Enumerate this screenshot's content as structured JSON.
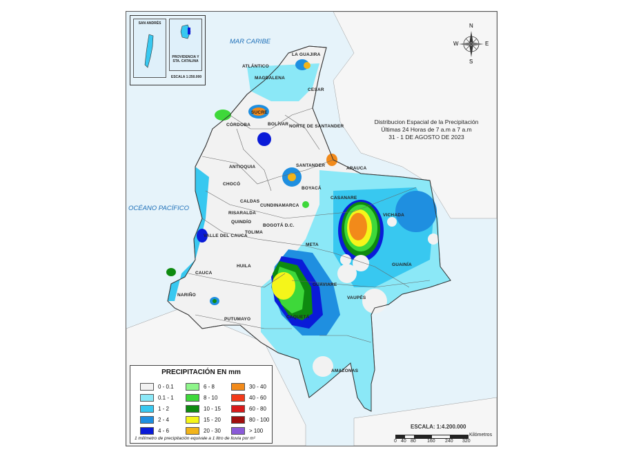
{
  "title_lines": [
    "Distribucion Espacial de la Precipitación",
    "Últimas 24 Horas de 7 a.m  a  7 a.m",
    "31 - 1  DE AGOSTO DE 2023"
  ],
  "seas": {
    "caribe": "MAR CARIBE",
    "pacifico": "OCÉANO PACÍFICO"
  },
  "departments": [
    "LA GUAJIRA",
    "ATLÁNTICO",
    "MAGDALENA",
    "CESAR",
    "SUCRE",
    "BOLÍVAR",
    "CÓRDOBA",
    "NORTE DE SANTANDER",
    "ANTIOQUIA",
    "SANTANDER",
    "ARAUCA",
    "CHOCÓ",
    "BOYACÁ",
    "CASANARE",
    "CALDAS",
    "CUNDINAMARCA",
    "RISARALDA",
    "QUINDÍO",
    "BOGOTÁ D.C.",
    "VICHADA",
    "TOLIMA",
    "VALLE DEL CAUCA",
    "META",
    "HUILA",
    "GUAINÍA",
    "CAUCA",
    "GUAVIARE",
    "NARIÑO",
    "VAUPÉS",
    "CAQUETÁ",
    "PUTUMAYO",
    "AMAZONAS"
  ],
  "inset": {
    "san_andres": "SAN ANDRÉS",
    "providencia": "PROVIDENCIA Y STA. CATALINA",
    "scale": "ESCALA 1:250.000"
  },
  "compass": {
    "n": "N",
    "s": "S",
    "e": "E",
    "w": "W"
  },
  "legend": {
    "title": "PRECIPITACIÓN EN mm",
    "items": [
      {
        "label": "0 - 0.1",
        "color": "#f2f2f2"
      },
      {
        "label": "0.1 - 1",
        "color": "#8be8f7"
      },
      {
        "label": "1 - 2",
        "color": "#38c8f0"
      },
      {
        "label": "2 - 4",
        "color": "#1f8fe0"
      },
      {
        "label": "4 - 6",
        "color": "#0a1bd8"
      },
      {
        "label": "6 - 8",
        "color": "#8ef58a"
      },
      {
        "label": "8 - 10",
        "color": "#3ed83a"
      },
      {
        "label": "10 - 15",
        "color": "#0e8a10"
      },
      {
        "label": "15 - 20",
        "color": "#f5f51a"
      },
      {
        "label": "20 - 30",
        "color": "#f2b41a"
      },
      {
        "label": "30 - 40",
        "color": "#f28a1a"
      },
      {
        "label": "40 - 60",
        "color": "#f23a1a"
      },
      {
        "label": "60 - 80",
        "color": "#d81a1a"
      },
      {
        "label": "80 - 100",
        "color": "#a00e0e"
      },
      {
        "label": "> 100",
        "color": "#8a5ad8"
      }
    ],
    "note": "1 milímetro de precipitación equivale a 1 litro de lluvia por m²"
  },
  "scale": {
    "label": "ESCALA: 1:4.200.000",
    "ticks": [
      "0",
      "40",
      "80",
      "160",
      "240",
      "320"
    ],
    "unit": "Kilómetros"
  }
}
